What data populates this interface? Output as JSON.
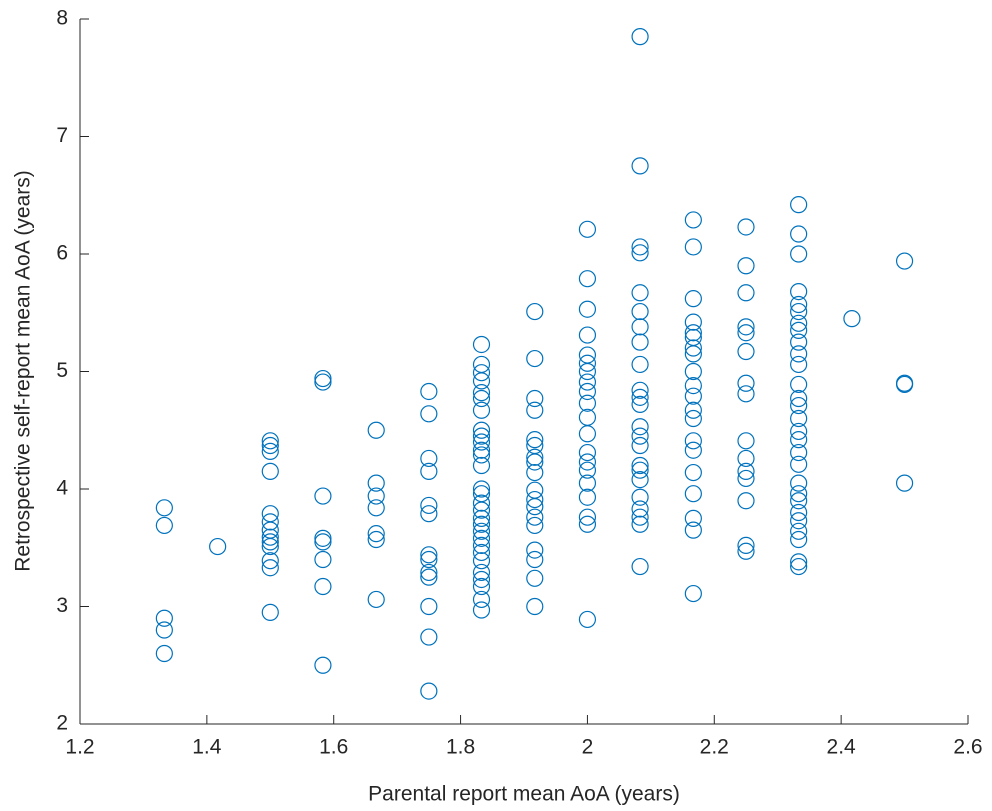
{
  "chart_data": {
    "type": "scatter",
    "xlabel": "Parental report mean AoA (years)",
    "ylabel": "Retrospective self-report mean AoA (years)",
    "color": "#0072BD",
    "xlim": [
      1.2,
      2.6
    ],
    "xticks": [
      1.2,
      1.4,
      1.6,
      1.8,
      2,
      2.2,
      2.4,
      2.6
    ],
    "ylim": [
      2,
      8
    ],
    "yticks": [
      2,
      3,
      4,
      5,
      6,
      7,
      8
    ],
    "x": [
      1.333,
      1.333,
      1.333,
      1.333,
      1.333,
      1.417,
      1.5,
      1.5,
      1.5,
      1.5,
      1.5,
      1.5,
      1.5,
      1.5,
      1.5,
      1.5,
      1.5,
      1.5,
      1.5,
      1.583,
      1.583,
      1.583,
      1.583,
      1.583,
      1.583,
      1.583,
      1.583,
      1.667,
      1.667,
      1.667,
      1.667,
      1.667,
      1.667,
      1.667,
      1.75,
      1.75,
      1.75,
      1.75,
      1.75,
      1.75,
      1.75,
      1.75,
      1.75,
      1.75,
      1.75,
      1.75,
      1.75,
      1.833,
      1.833,
      1.833,
      1.833,
      1.833,
      1.833,
      1.833,
      1.833,
      1.833,
      1.833,
      1.833,
      1.833,
      1.833,
      1.833,
      1.833,
      1.833,
      1.833,
      1.833,
      1.833,
      1.833,
      1.833,
      1.833,
      1.833,
      1.833,
      1.833,
      1.833,
      1.833,
      1.833,
      1.833,
      1.917,
      1.917,
      1.917,
      1.917,
      1.917,
      1.917,
      1.917,
      1.917,
      1.917,
      1.917,
      1.917,
      1.917,
      1.917,
      1.917,
      1.917,
      1.917,
      1.917,
      1.917,
      2.0,
      2.0,
      2.0,
      2.0,
      2.0,
      2.0,
      2.0,
      2.0,
      2.0,
      2.0,
      2.0,
      2.0,
      2.0,
      2.0,
      2.0,
      2.0,
      2.0,
      2.0,
      2.0,
      2.0,
      2.083,
      2.083,
      2.083,
      2.083,
      2.083,
      2.083,
      2.083,
      2.083,
      2.083,
      2.083,
      2.083,
      2.083,
      2.083,
      2.083,
      2.083,
      2.083,
      2.083,
      2.083,
      2.083,
      2.083,
      2.083,
      2.083,
      2.083,
      2.167,
      2.167,
      2.167,
      2.167,
      2.167,
      2.167,
      2.167,
      2.167,
      2.167,
      2.167,
      2.167,
      2.167,
      2.167,
      2.167,
      2.167,
      2.167,
      2.167,
      2.167,
      2.167,
      2.167,
      2.25,
      2.25,
      2.25,
      2.25,
      2.25,
      2.25,
      2.25,
      2.25,
      2.25,
      2.25,
      2.25,
      2.25,
      2.25,
      2.25,
      2.25,
      2.333,
      2.333,
      2.333,
      2.333,
      2.333,
      2.333,
      2.333,
      2.333,
      2.333,
      2.333,
      2.333,
      2.333,
      2.333,
      2.333,
      2.333,
      2.333,
      2.333,
      2.333,
      2.333,
      2.333,
      2.333,
      2.333,
      2.333,
      2.333,
      2.333,
      2.333,
      2.333,
      2.333,
      2.417,
      2.5,
      2.5,
      2.5,
      2.5
    ],
    "values": [
      3.84,
      3.69,
      2.9,
      2.8,
      2.6,
      3.51,
      4.41,
      4.37,
      4.32,
      4.15,
      3.79,
      3.72,
      3.65,
      3.59,
      3.55,
      3.51,
      3.39,
      3.33,
      2.95,
      4.94,
      4.91,
      3.94,
      3.58,
      3.55,
      3.4,
      3.17,
      2.5,
      4.5,
      4.05,
      3.94,
      3.84,
      3.62,
      3.57,
      3.06,
      4.83,
      4.64,
      4.26,
      4.15,
      3.86,
      3.79,
      3.44,
      3.4,
      3.29,
      3.25,
      3.0,
      2.74,
      2.28,
      5.23,
      5.06,
      4.99,
      4.92,
      4.82,
      4.77,
      4.67,
      4.5,
      4.45,
      4.4,
      4.33,
      4.29,
      4.2,
      4.0,
      3.96,
      3.88,
      3.82,
      3.75,
      3.7,
      3.64,
      3.58,
      3.52,
      3.46,
      3.39,
      3.29,
      3.23,
      3.17,
      3.06,
      2.97,
      5.51,
      5.11,
      4.77,
      4.67,
      4.42,
      4.37,
      4.27,
      4.23,
      4.14,
      3.99,
      3.91,
      3.85,
      3.76,
      3.69,
      3.48,
      3.4,
      3.24,
      3.0,
      6.21,
      5.79,
      5.53,
      5.31,
      5.14,
      5.07,
      5.0,
      4.91,
      4.83,
      4.73,
      4.61,
      4.47,
      4.31,
      4.23,
      4.16,
      4.05,
      3.93,
      3.76,
      3.7,
      2.89,
      7.85,
      6.75,
      6.06,
      6.01,
      5.67,
      5.51,
      5.38,
      5.25,
      5.06,
      4.84,
      4.78,
      4.72,
      4.53,
      4.45,
      4.37,
      4.2,
      4.16,
      4.08,
      3.93,
      3.83,
      3.76,
      3.7,
      3.34,
      6.29,
      6.06,
      5.62,
      5.42,
      5.33,
      5.29,
      5.2,
      5.15,
      5.0,
      4.88,
      4.79,
      4.67,
      4.6,
      4.41,
      4.33,
      4.14,
      3.96,
      3.75,
      3.65,
      3.11,
      6.23,
      5.9,
      5.67,
      5.38,
      5.33,
      5.17,
      4.9,
      4.81,
      4.41,
      4.26,
      4.15,
      4.09,
      3.9,
      3.52,
      3.47,
      6.42,
      6.17,
      6.0,
      5.68,
      5.57,
      5.51,
      5.41,
      5.35,
      5.25,
      5.15,
      5.06,
      4.89,
      4.77,
      4.71,
      4.6,
      4.49,
      4.42,
      4.31,
      4.21,
      4.05,
      3.96,
      3.9,
      3.8,
      3.73,
      3.64,
      3.57,
      3.38,
      3.34,
      5.45,
      5.94,
      4.9,
      4.89,
      4.05
    ]
  }
}
